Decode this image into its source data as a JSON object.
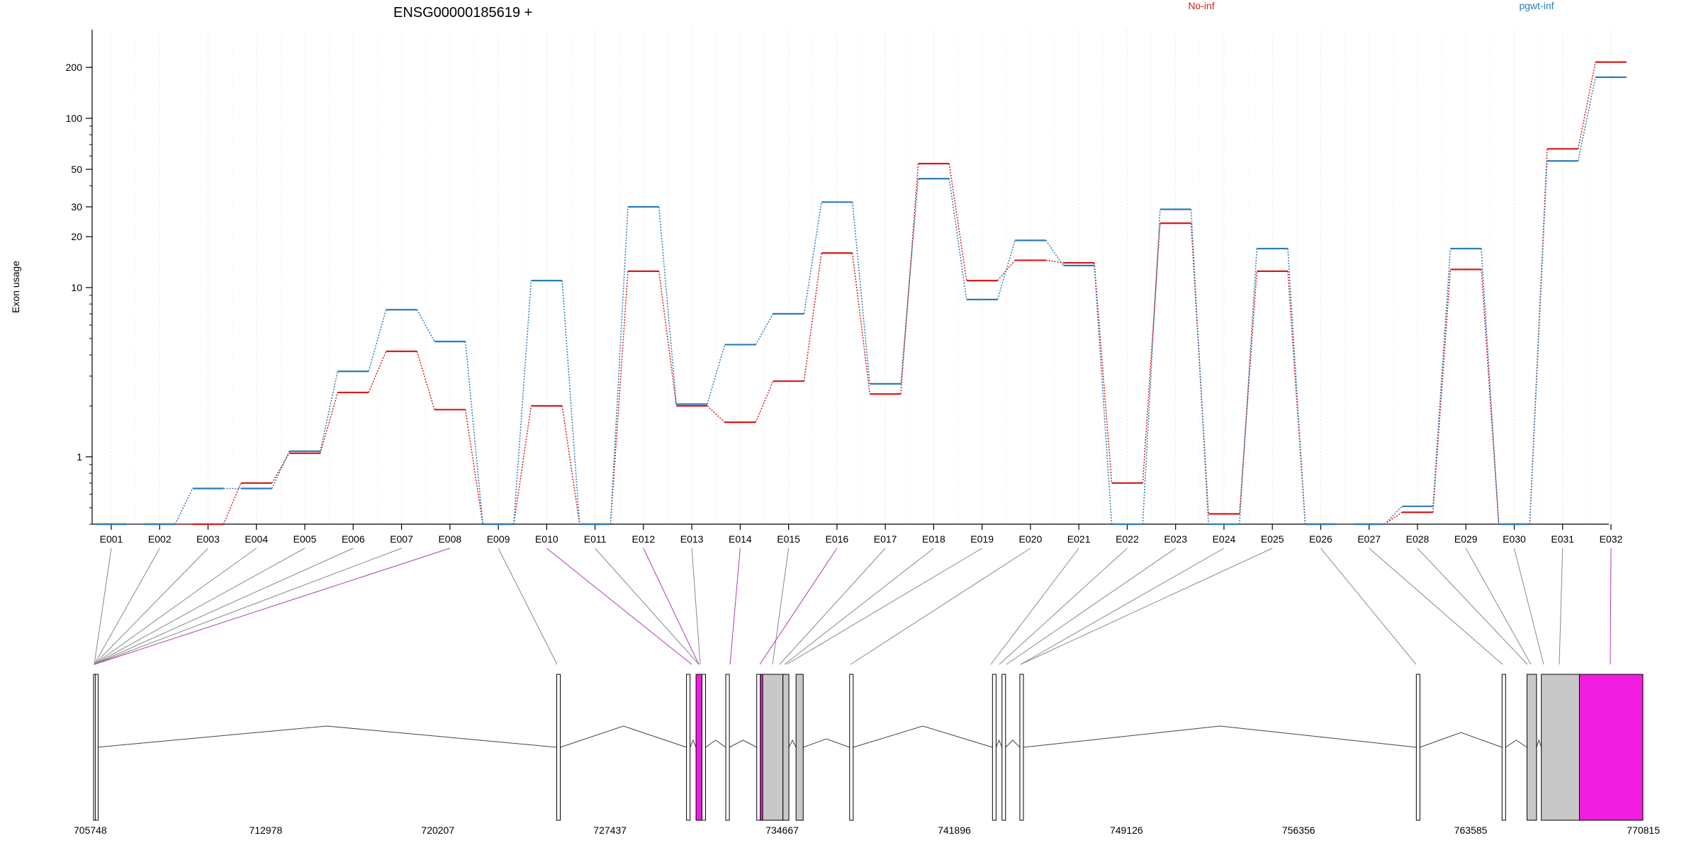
{
  "chart_data": {
    "type": "line",
    "title": "ENSG00000185619 +",
    "ylabel": "Exon usage",
    "yscale": "log",
    "ylim": [
      0.4,
      250
    ],
    "yticks": [
      1,
      10,
      20,
      30,
      50,
      100,
      200
    ],
    "grid": true,
    "legend_position": "top-right",
    "categories": [
      "E001",
      "E002",
      "E003",
      "E004",
      "E005",
      "E006",
      "E007",
      "E008",
      "E009",
      "E010",
      "E011",
      "E012",
      "E013",
      "E014",
      "E015",
      "E016",
      "E017",
      "E018",
      "E019",
      "E020",
      "E021",
      "E022",
      "E023",
      "E024",
      "E025",
      "E026",
      "E027",
      "E028",
      "E029",
      "E030",
      "E031",
      "E032"
    ],
    "series": [
      {
        "name": "No-inf",
        "color": "#d7191c",
        "values": [
          0.4,
          0.4,
          0.4,
          0.7,
          1.05,
          2.4,
          4.2,
          1.9,
          0.4,
          2.0,
          0.4,
          12.5,
          2.0,
          1.6,
          2.8,
          16,
          2.35,
          54,
          11,
          14.5,
          14,
          0.7,
          24,
          0.46,
          12.5,
          0.4,
          0.4,
          0.47,
          12.8,
          0.4,
          66,
          215
        ]
      },
      {
        "name": "pgwt-inf",
        "color": "#2c7bb6",
        "values": [
          0.4,
          0.4,
          0.65,
          0.65,
          1.08,
          3.2,
          7.4,
          4.8,
          0.4,
          11,
          0.4,
          30,
          2.05,
          4.6,
          7,
          32,
          2.7,
          44,
          8.5,
          19,
          13.5,
          0.4,
          29,
          0.4,
          17,
          0.4,
          0.4,
          0.51,
          17,
          0.4,
          56,
          175
        ]
      }
    ],
    "axis_bottom": {
      "xlim": [
        705748,
        770815
      ],
      "ticks": [
        705748,
        712978,
        720207,
        727437,
        734667,
        741896,
        749126,
        756356,
        763585,
        770815
      ]
    },
    "exons": [
      {
        "start": 705748,
        "end": 705800,
        "fill": "#ffffff"
      },
      {
        "start": 705820,
        "end": 705880,
        "fill": "#ffffff"
      },
      {
        "start": 725200,
        "end": 725350,
        "fill": "#ffffff"
      },
      {
        "start": 730650,
        "end": 730800,
        "fill": "#ffffff"
      },
      {
        "start": 731050,
        "end": 731300,
        "fill": "#f01de0"
      },
      {
        "start": 731300,
        "end": 731450,
        "fill": "#ffffff"
      },
      {
        "start": 732300,
        "end": 732450,
        "fill": "#ffffff"
      },
      {
        "start": 733600,
        "end": 733750,
        "fill": "#ffffff"
      },
      {
        "start": 733750,
        "end": 733850,
        "fill": "#f01de0"
      },
      {
        "start": 733850,
        "end": 734700,
        "fill": "#c8c8c8"
      },
      {
        "start": 734700,
        "end": 734950,
        "fill": "#c8c8c8"
      },
      {
        "start": 735250,
        "end": 735550,
        "fill": "#c8c8c8"
      },
      {
        "start": 737500,
        "end": 737650,
        "fill": "#ffffff"
      },
      {
        "start": 743500,
        "end": 743650,
        "fill": "#ffffff"
      },
      {
        "start": 743900,
        "end": 744050,
        "fill": "#ffffff"
      },
      {
        "start": 744650,
        "end": 744800,
        "fill": "#ffffff"
      },
      {
        "start": 761300,
        "end": 761450,
        "fill": "#ffffff"
      },
      {
        "start": 764900,
        "end": 765050,
        "fill": "#ffffff"
      },
      {
        "start": 765950,
        "end": 766350,
        "fill": "#c8c8c8"
      },
      {
        "start": 766550,
        "end": 768150,
        "fill": "#c8c8c8"
      },
      {
        "start": 768150,
        "end": 770815,
        "fill": "#f01de0"
      }
    ]
  }
}
